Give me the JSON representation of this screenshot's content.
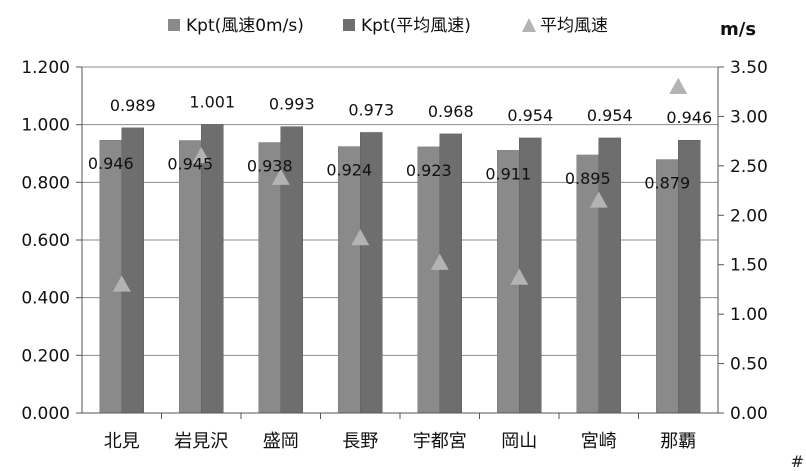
{
  "chart_data": {
    "type": "bar",
    "categories": [
      "北見",
      "岩見沢",
      "盛岡",
      "長野",
      "宇都宮",
      "岡山",
      "宮崎",
      "那覇"
    ],
    "series": [
      {
        "name": "Kpt(風速0m/s)",
        "type": "bar",
        "axis": "left",
        "color": "#8a8a8a",
        "values": [
          0.946,
          0.945,
          0.938,
          0.924,
          0.923,
          0.911,
          0.895,
          0.879
        ],
        "labels": [
          "0.946",
          "0.945",
          "0.938",
          "0.924",
          "0.923",
          "0.911",
          "0.895",
          "0.879"
        ]
      },
      {
        "name": "Kpt(平均風速)",
        "type": "bar",
        "axis": "right-of-pair",
        "color": "#6e6e6e",
        "values": [
          0.989,
          1.001,
          0.993,
          0.973,
          0.968,
          0.954,
          0.954,
          0.946
        ],
        "labels": [
          "0.989",
          "1.001",
          "0.993",
          "0.973",
          "0.968",
          "0.954",
          "0.954",
          "0.946"
        ]
      },
      {
        "name": "平均風速",
        "type": "marker",
        "axis": "right",
        "color": "#b3b3b3",
        "values": [
          1.3,
          2.6,
          2.38,
          1.77,
          1.52,
          1.37,
          2.15,
          3.3
        ]
      }
    ],
    "y_left": {
      "min": 0,
      "max": 1.2,
      "ticks": [
        "0.000",
        "0.200",
        "0.400",
        "0.600",
        "0.800",
        "1.000",
        "1.200"
      ]
    },
    "y_right": {
      "min": 0,
      "max": 3.5,
      "unit": "m/s",
      "ticks": [
        "0.00",
        "0.50",
        "1.00",
        "1.50",
        "2.00",
        "2.50",
        "3.00",
        "3.50"
      ]
    },
    "grid": true,
    "legend": "top-center"
  },
  "corner_mark": "#"
}
